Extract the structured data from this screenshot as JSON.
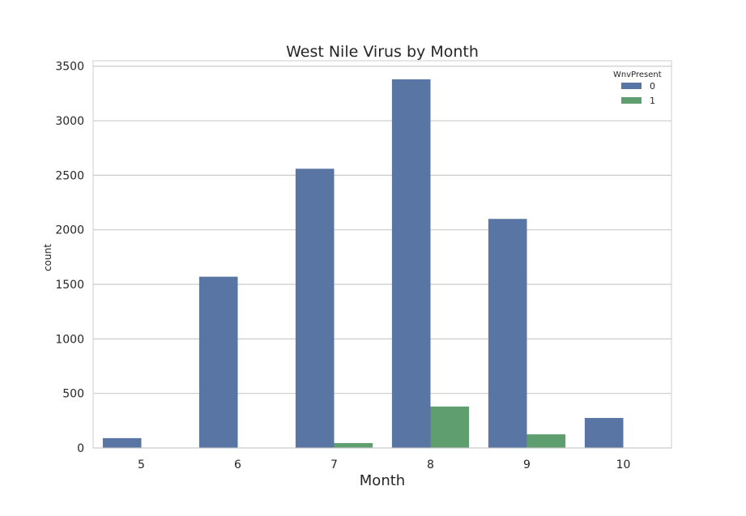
{
  "chart_data": {
    "type": "bar",
    "title": "West Nile Virus by Month",
    "xlabel": "Month",
    "ylabel": "count",
    "categories": [
      "5",
      "6",
      "7",
      "8",
      "9",
      "10"
    ],
    "series": [
      {
        "name": "0",
        "values": [
          90,
          1570,
          2560,
          3380,
          2100,
          275
        ]
      },
      {
        "name": "1",
        "values": [
          0,
          0,
          45,
          380,
          125,
          0
        ]
      }
    ],
    "ylim": [
      0,
      3550
    ],
    "yticks": [
      "0",
      "500",
      "1000",
      "1500",
      "2000",
      "2500",
      "3000",
      "3500"
    ],
    "grid": "y",
    "legend": {
      "title": "WnvPresent",
      "position": "top-right"
    },
    "colors": {
      "series0": "#5975a4",
      "series1": "#5f9e6e",
      "grid": "#cccccc",
      "axis_frame": "#cccccc"
    }
  }
}
